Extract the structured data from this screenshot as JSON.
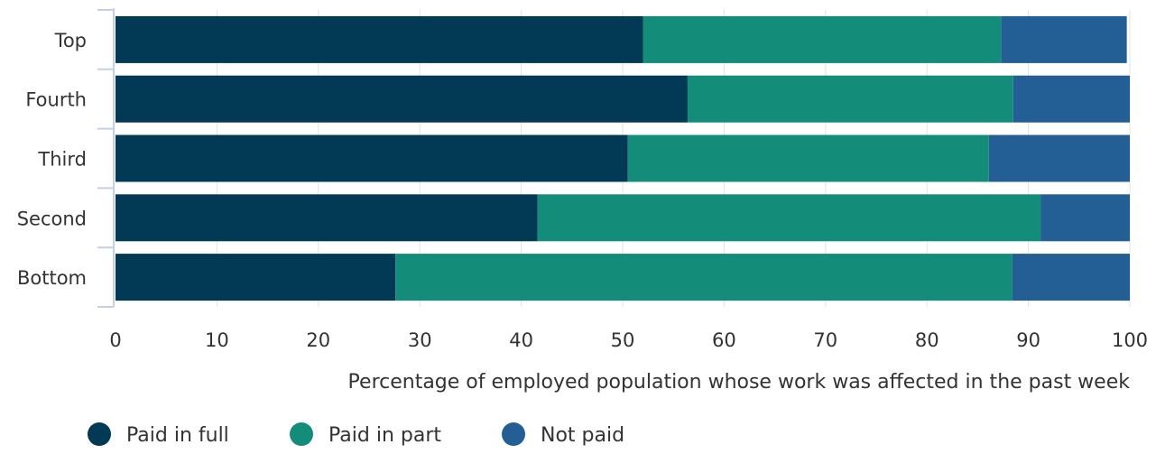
{
  "chart_data": {
    "type": "bar",
    "orientation": "horizontal",
    "stacked": true,
    "title": "",
    "xlabel": "Percentage of employed population whose work was affected in the past week",
    "ylabel": "",
    "xlim": [
      0,
      100
    ],
    "xticks": [
      "0",
      "10",
      "20",
      "30",
      "40",
      "50",
      "60",
      "70",
      "80",
      "90",
      "100"
    ],
    "grid": true,
    "legend_position": "bottom-left",
    "categories": [
      "Top",
      "Fourth",
      "Third",
      "Second",
      "Bottom"
    ],
    "series": [
      {
        "name": "Paid in full",
        "color": "#023a56",
        "values": [
          52,
          56.4,
          50.5,
          41.6,
          27.6
        ]
      },
      {
        "name": "Paid in part",
        "color": "#138c7a",
        "values": [
          35.3,
          32.1,
          35.6,
          49.6,
          60.8
        ]
      },
      {
        "name": "Not paid",
        "color": "#235f95",
        "values": [
          12.4,
          11.5,
          13.9,
          8.8,
          11.6
        ]
      }
    ]
  }
}
